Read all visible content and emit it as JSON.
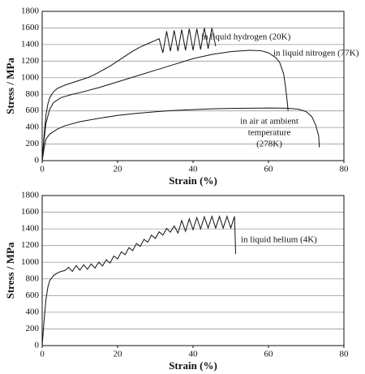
{
  "chart_data": [
    {
      "type": "line",
      "xlabel": "Strain (%)",
      "ylabel": "Stress / MPa",
      "xlim": [
        0,
        80
      ],
      "xticks": [
        0,
        20,
        40,
        60,
        80
      ],
      "ylim": [
        0,
        1800
      ],
      "yticks": [
        0,
        200,
        400,
        600,
        800,
        1000,
        1200,
        1400,
        1600,
        1800
      ],
      "grid": true,
      "series": [
        {
          "name": "in liquid hydrogen (20K)",
          "color": "#111111",
          "x": [
            0,
            0.5,
            1,
            1.5,
            2,
            3,
            4,
            6,
            8,
            10,
            12,
            14,
            16,
            18,
            20,
            22,
            24,
            26,
            28,
            30,
            31,
            32,
            33,
            34,
            35,
            36,
            37,
            38,
            39,
            40,
            41,
            42,
            43,
            44,
            45,
            46
          ],
          "values": [
            0,
            300,
            550,
            680,
            760,
            830,
            870,
            910,
            940,
            970,
            1000,
            1040,
            1090,
            1140,
            1200,
            1260,
            1320,
            1370,
            1410,
            1450,
            1470,
            1300,
            1560,
            1320,
            1570,
            1320,
            1580,
            1330,
            1590,
            1330,
            1590,
            1340,
            1600,
            1350,
            1600,
            1380
          ]
        },
        {
          "name": "in liquid nitrogen (77K)",
          "color": "#111111",
          "x": [
            0,
            0.5,
            1,
            2,
            3,
            5,
            8,
            10,
            15,
            20,
            25,
            30,
            35,
            40,
            45,
            50,
            55,
            58,
            60,
            62,
            63,
            64,
            64.5,
            65,
            65.2
          ],
          "values": [
            0,
            250,
            450,
            620,
            700,
            760,
            800,
            820,
            880,
            950,
            1020,
            1090,
            1160,
            1230,
            1280,
            1315,
            1330,
            1325,
            1300,
            1240,
            1180,
            1050,
            900,
            700,
            600
          ]
        },
        {
          "name": [
            "in air at ambient",
            "temperature",
            "(278K)"
          ],
          "color": "#111111",
          "x": [
            0,
            0.5,
            1,
            2,
            4,
            6,
            10,
            15,
            20,
            25,
            30,
            35,
            40,
            45,
            50,
            55,
            60,
            65,
            68,
            70,
            71.5,
            72.5,
            73.3,
            73.5
          ],
          "values": [
            0,
            150,
            260,
            320,
            380,
            420,
            470,
            510,
            545,
            570,
            590,
            605,
            615,
            625,
            630,
            632,
            635,
            632,
            620,
            590,
            530,
            430,
            300,
            160
          ]
        }
      ]
    },
    {
      "type": "line",
      "xlabel": "Strain (%)",
      "ylabel": "Stress / MPa",
      "xlim": [
        0,
        80
      ],
      "xticks": [
        0,
        20,
        40,
        60,
        80
      ],
      "ylim": [
        0,
        1800
      ],
      "yticks": [
        0,
        200,
        400,
        600,
        800,
        1000,
        1200,
        1400,
        1600,
        1800
      ],
      "grid": true,
      "series": [
        {
          "name": "in liquid helium (4K)",
          "color": "#111111",
          "x": [
            0,
            0.5,
            1,
            1.5,
            2,
            3,
            4,
            5,
            6,
            7,
            8,
            9,
            10,
            11,
            12,
            13,
            14,
            15,
            16,
            17,
            18,
            19,
            20,
            21,
            22,
            23,
            24,
            25,
            26,
            27,
            28,
            29,
            30,
            31,
            32,
            33,
            34,
            35,
            36,
            37,
            38,
            39,
            40,
            41,
            42,
            43,
            44,
            45,
            46,
            47,
            48,
            49,
            50,
            51,
            51.3
          ],
          "values": [
            0,
            300,
            550,
            700,
            780,
            840,
            870,
            890,
            900,
            940,
            890,
            960,
            905,
            970,
            915,
            980,
            930,
            1000,
            955,
            1030,
            990,
            1075,
            1040,
            1125,
            1090,
            1175,
            1140,
            1225,
            1190,
            1275,
            1240,
            1325,
            1285,
            1365,
            1325,
            1405,
            1360,
            1435,
            1350,
            1500,
            1370,
            1520,
            1390,
            1535,
            1400,
            1545,
            1410,
            1550,
            1410,
            1550,
            1410,
            1550,
            1410,
            1550,
            1100
          ]
        }
      ]
    }
  ]
}
